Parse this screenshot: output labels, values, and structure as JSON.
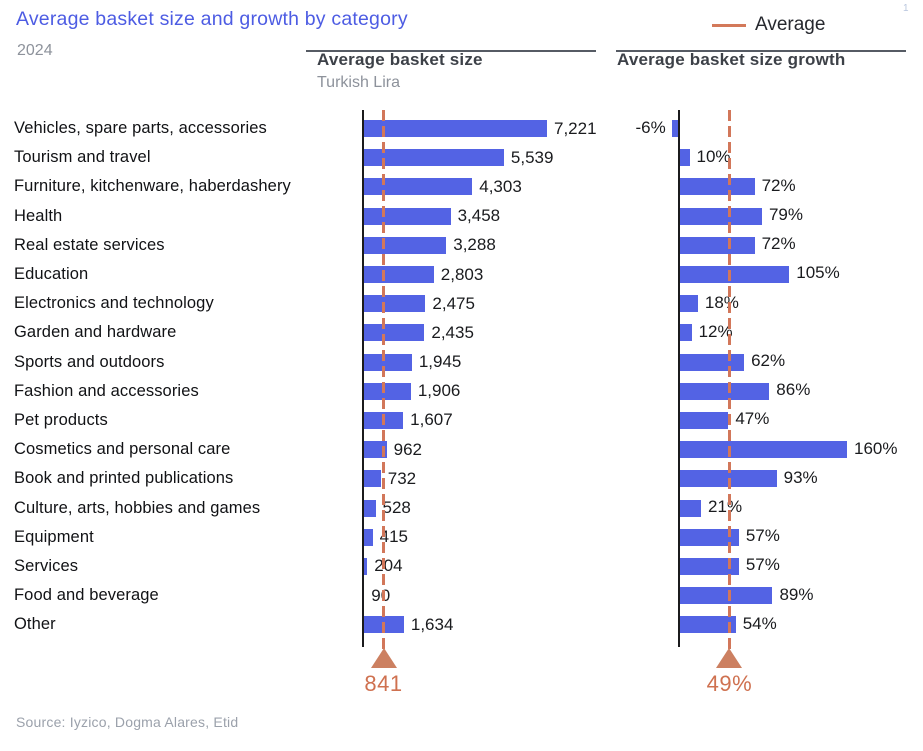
{
  "title": "Average basket size and growth by category",
  "subtitle_year": "2024",
  "footnote_marker": "1",
  "legend": {
    "label": "Average",
    "line_color": "#d3795a"
  },
  "left_chart": {
    "title": "Average basket size",
    "unit": "Turkish Lira"
  },
  "right_chart": {
    "title": "Average basket size growth"
  },
  "source": "Source: Iyzico, Dogma Alares, Etid",
  "colors": {
    "title_blue": "#4d5ce3",
    "bar_blue": "#5363e4",
    "average_orange": "#d2775a",
    "average_text": "#cf7150",
    "axis_black": "#1b1b1d",
    "header_gray": "#3d4148",
    "muted_gray": "#8d929b"
  },
  "chart_data": [
    {
      "type": "bar",
      "orientation": "horizontal",
      "title": "Average basket size",
      "unit": "Turkish Lira",
      "categories": [
        "Vehicles, spare parts, accessories",
        "Tourism and travel",
        "Furniture, kitchenware, haberdashery",
        "Health",
        "Real estate services",
        "Education",
        "Electronics and technology",
        "Garden and hardware",
        "Sports and outdoors",
        "Fashion and accessories",
        "Pet products",
        "Cosmetics and personal care",
        "Book and printed publications",
        "Culture, arts, hobbies and games",
        "Equipment",
        "Services",
        "Food and beverage",
        "Other"
      ],
      "values": [
        7221,
        5539,
        4303,
        3458,
        3288,
        2803,
        2475,
        2435,
        1945,
        1906,
        1607,
        962,
        732,
        528,
        415,
        204,
        90,
        1634
      ],
      "value_labels": [
        "7,221",
        "5,539",
        "4,303",
        "3,458",
        "3,288",
        "2,803",
        "2,475",
        "2,435",
        "1,945",
        "1,906",
        "1,607",
        "962",
        "732",
        "528",
        "415",
        "204",
        "90",
        "1,634"
      ],
      "average": 841,
      "average_label": "841",
      "xlim": [
        0,
        7600
      ],
      "grid": false,
      "legend_position": "top-right"
    },
    {
      "type": "bar",
      "orientation": "horizontal",
      "title": "Average basket size growth",
      "unit": "%",
      "categories": [
        "Vehicles, spare parts, accessories",
        "Tourism and travel",
        "Furniture, kitchenware, haberdashery",
        "Health",
        "Real estate services",
        "Education",
        "Electronics and technology",
        "Garden and hardware",
        "Sports and outdoors",
        "Fashion and accessories",
        "Pet products",
        "Cosmetics and personal care",
        "Book and printed publications",
        "Culture, arts, hobbies and games",
        "Equipment",
        "Services",
        "Food and beverage",
        "Other"
      ],
      "values": [
        -6,
        10,
        72,
        79,
        72,
        105,
        18,
        12,
        62,
        86,
        47,
        160,
        93,
        21,
        57,
        57,
        89,
        54
      ],
      "value_labels": [
        "-6%",
        "10%",
        "72%",
        "79%",
        "72%",
        "105%",
        "18%",
        "12%",
        "62%",
        "86%",
        "47%",
        "160%",
        "93%",
        "21%",
        "57%",
        "57%",
        "89%",
        "54%"
      ],
      "average": 49,
      "average_label": "49%",
      "xlim": [
        -10,
        170
      ],
      "grid": false,
      "legend_position": "top-right"
    }
  ]
}
